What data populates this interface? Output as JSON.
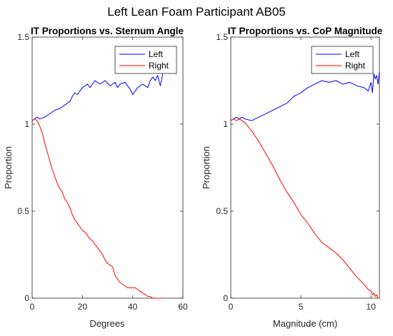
{
  "figure": {
    "suptitle": "Left Lean Foam Participant AB05",
    "colors": {
      "left": "#0000ff",
      "right": "#ff0000",
      "axes": "#262626",
      "background": "#ffffff"
    }
  },
  "chart_data": [
    {
      "type": "line",
      "title": "IT Proportions vs. Sternum Angle",
      "xlabel": "Degrees",
      "ylabel": "Proportion",
      "xlim": [
        0,
        60
      ],
      "ylim": [
        0,
        1.5
      ],
      "xticks": [
        "0",
        "20",
        "40",
        "60"
      ],
      "yticks": [
        "0",
        "0.5",
        "1",
        "1.5"
      ],
      "xtick_values": [
        0,
        20,
        40,
        60
      ],
      "ytick_values": [
        0,
        0.5,
        1,
        1.5
      ],
      "legend": {
        "location": "top-right",
        "entries": [
          "Left",
          "Right"
        ]
      },
      "grid": false,
      "series": [
        {
          "name": "Left",
          "color": "#0000ff",
          "x": [
            0,
            1,
            2,
            3,
            5,
            7,
            9,
            11,
            13,
            15,
            16,
            17,
            18,
            20,
            22,
            23,
            25,
            27,
            29,
            31,
            33,
            34,
            35,
            37,
            39,
            40,
            42,
            44,
            46,
            47,
            48,
            49,
            50,
            51,
            52
          ],
          "y": [
            1.02,
            1.03,
            1.04,
            1.03,
            1.04,
            1.06,
            1.08,
            1.09,
            1.11,
            1.13,
            1.16,
            1.18,
            1.17,
            1.21,
            1.23,
            1.21,
            1.25,
            1.23,
            1.25,
            1.22,
            1.24,
            1.21,
            1.23,
            1.24,
            1.2,
            1.17,
            1.21,
            1.23,
            1.21,
            1.25,
            1.27,
            1.25,
            1.28,
            1.22,
            1.29
          ]
        },
        {
          "name": "Right",
          "color": "#ff0000",
          "x": [
            0,
            1,
            2,
            3,
            4,
            5,
            6,
            7,
            8,
            9,
            10,
            11,
            12,
            13,
            14,
            15,
            16,
            17,
            18,
            19,
            20,
            21,
            22,
            23,
            24,
            25,
            26,
            27,
            28,
            29,
            30,
            31,
            32,
            33,
            34,
            35,
            36,
            37,
            38,
            39,
            40,
            41,
            42,
            43,
            44,
            45,
            46,
            47,
            48,
            49,
            50,
            51,
            52
          ],
          "y": [
            1.02,
            1.03,
            1.02,
            0.99,
            0.95,
            0.89,
            0.84,
            0.79,
            0.74,
            0.7,
            0.66,
            0.63,
            0.61,
            0.57,
            0.55,
            0.52,
            0.48,
            0.45,
            0.43,
            0.41,
            0.39,
            0.38,
            0.36,
            0.34,
            0.33,
            0.31,
            0.29,
            0.27,
            0.25,
            0.22,
            0.2,
            0.19,
            0.18,
            0.13,
            0.11,
            0.09,
            0.08,
            0.07,
            0.06,
            0.06,
            0.06,
            0.06,
            0.05,
            0.04,
            0.03,
            0.02,
            0.01,
            0.01,
            0.0,
            0.0,
            0.0,
            0.0,
            0.0
          ]
        }
      ]
    },
    {
      "type": "line",
      "title": "IT Proportions vs. CoP Magnitude",
      "xlabel": "Magnitude (cm)",
      "ylabel": "Proportion",
      "xlim": [
        0,
        10.6
      ],
      "ylim": [
        0,
        1.5
      ],
      "xticks": [
        "0",
        "5",
        "10"
      ],
      "yticks": [
        "0",
        "0.5",
        "1",
        "1.5"
      ],
      "xtick_values": [
        0,
        5,
        10
      ],
      "ytick_values": [
        0,
        0.5,
        1,
        1.5
      ],
      "legend": {
        "location": "top-right",
        "entries": [
          "Left",
          "Right"
        ]
      },
      "grid": false,
      "series": [
        {
          "name": "Left",
          "color": "#0000ff",
          "x": [
            0,
            0.2,
            0.4,
            0.6,
            0.8,
            1.0,
            1.5,
            2.0,
            2.5,
            3.0,
            3.5,
            4.0,
            4.5,
            5.0,
            5.5,
            6.0,
            6.5,
            7.0,
            7.5,
            8.0,
            8.5,
            9.0,
            9.5,
            9.8,
            10.0,
            10.1,
            10.2,
            10.3,
            10.4,
            10.5,
            10.6
          ],
          "y": [
            1.02,
            1.03,
            1.04,
            1.03,
            1.04,
            1.03,
            1.02,
            1.04,
            1.06,
            1.08,
            1.1,
            1.12,
            1.16,
            1.18,
            1.21,
            1.23,
            1.25,
            1.24,
            1.25,
            1.23,
            1.24,
            1.22,
            1.21,
            1.19,
            1.24,
            1.18,
            1.29,
            1.26,
            1.28,
            1.23,
            1.3
          ]
        },
        {
          "name": "Right",
          "color": "#ff0000",
          "x": [
            0,
            0.2,
            0.4,
            0.6,
            0.8,
            1.0,
            1.5,
            2.0,
            2.5,
            3.0,
            3.5,
            4.0,
            4.5,
            5.0,
            5.5,
            6.0,
            6.5,
            7.0,
            7.5,
            8.0,
            8.5,
            9.0,
            9.5,
            9.8,
            10.0,
            10.1,
            10.2,
            10.3,
            10.4,
            10.5,
            10.6
          ],
          "y": [
            1.02,
            1.03,
            1.02,
            1.03,
            1.02,
            1.01,
            0.96,
            0.9,
            0.83,
            0.76,
            0.68,
            0.61,
            0.55,
            0.48,
            0.43,
            0.37,
            0.32,
            0.29,
            0.26,
            0.22,
            0.17,
            0.12,
            0.08,
            0.05,
            0.04,
            0.02,
            0.03,
            0.01,
            0.02,
            0.0,
            0.0
          ]
        }
      ]
    }
  ]
}
